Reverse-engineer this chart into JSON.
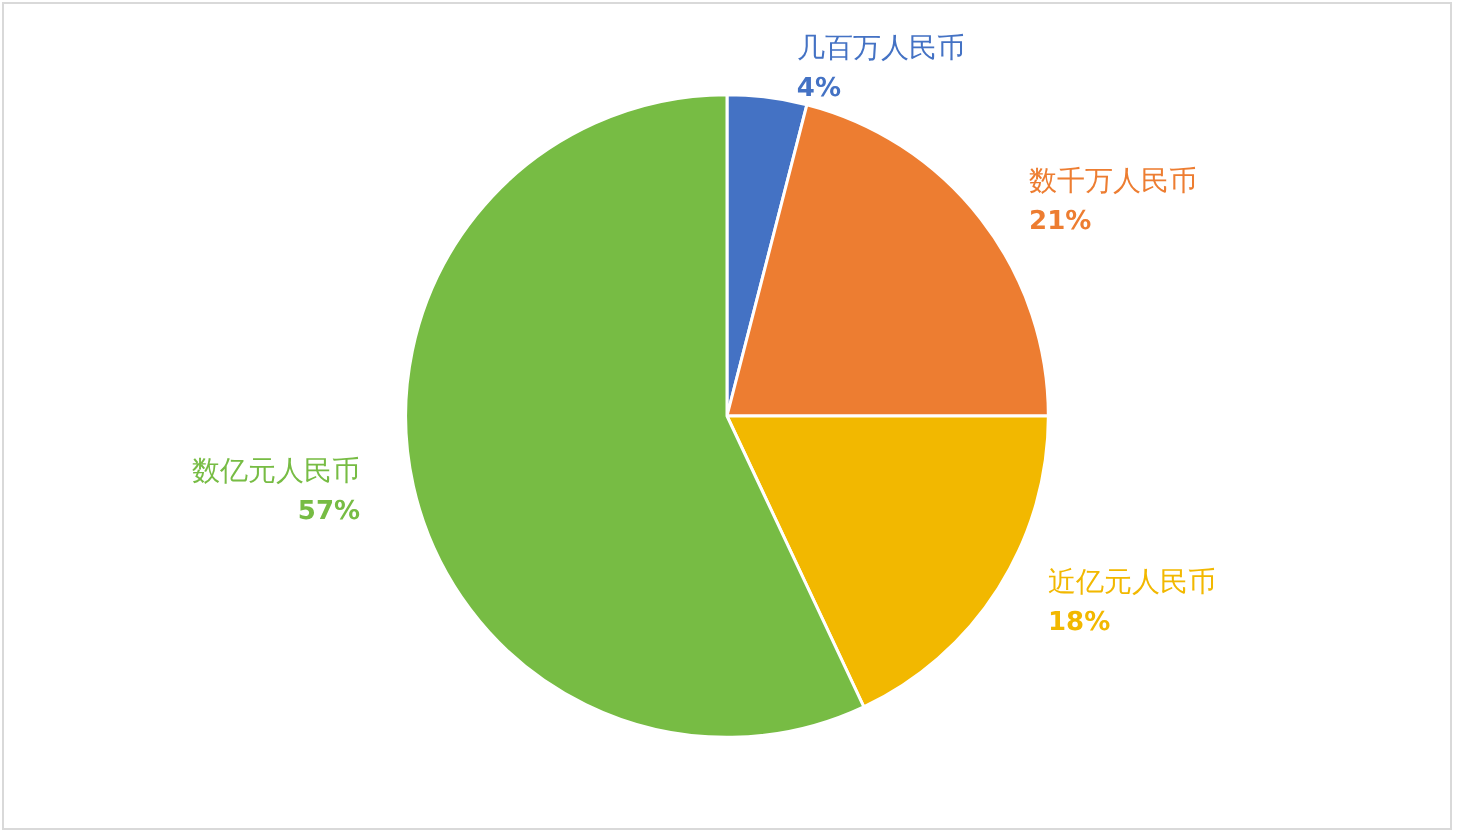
{
  "chart_data": {
    "type": "pie",
    "categories": [
      "几百万人民币",
      "数千万人民币",
      "近亿元人民币",
      "数亿元人民币"
    ],
    "values": [
      4,
      21,
      18,
      57
    ],
    "value_labels": [
      "4%",
      "21%",
      "18%",
      "57%"
    ],
    "colors": [
      "#4472c4",
      "#ed7d31",
      "#f2b800",
      "#77bc44"
    ],
    "legend": false
  }
}
